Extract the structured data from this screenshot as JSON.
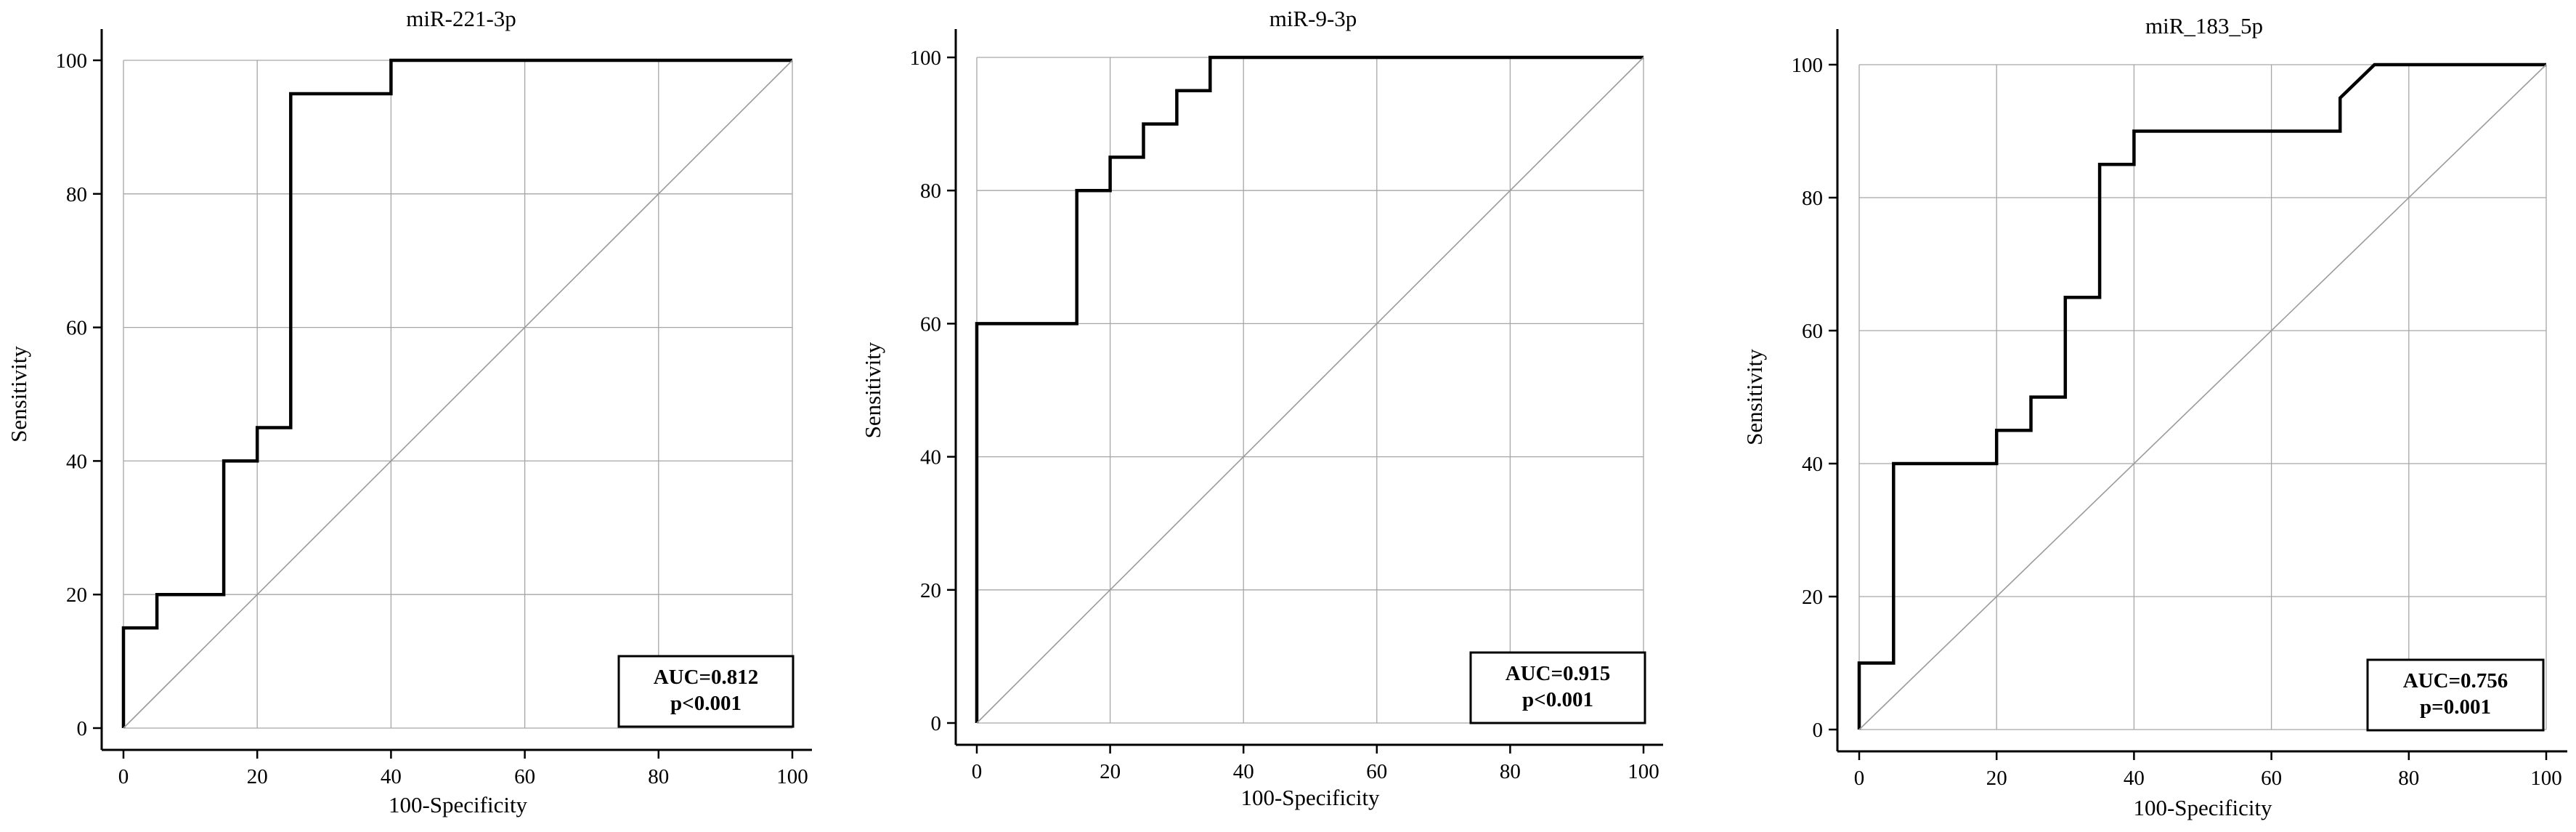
{
  "chart_data": [
    {
      "type": "line",
      "title": "miR-221-3p",
      "xlabel": "100-Specificity",
      "ylabel": "Sensitivity",
      "xlim": [
        0,
        100
      ],
      "ylim": [
        0,
        100
      ],
      "xticks": [
        "0",
        "20",
        "40",
        "60",
        "80",
        "100"
      ],
      "yticks": [
        "0",
        "20",
        "40",
        "60",
        "80",
        "100"
      ],
      "grid": true,
      "legend": "none",
      "series": [
        {
          "points": [
            [
              0,
              0
            ],
            [
              0,
              15
            ],
            [
              5,
              15
            ],
            [
              5,
              20
            ],
            [
              15,
              20
            ],
            [
              15,
              40
            ],
            [
              20,
              40
            ],
            [
              20,
              45
            ],
            [
              25,
              45
            ],
            [
              25,
              95
            ],
            [
              40,
              95
            ],
            [
              40,
              100
            ],
            [
              100,
              100
            ]
          ]
        },
        {
          "points": [
            [
              0,
              0
            ],
            [
              100,
              100
            ]
          ],
          "style": "reference-diagonal"
        }
      ],
      "annotation": {
        "line1": "AUC=0.812",
        "line2": "p<0.001",
        "position": "bottom-right"
      }
    },
    {
      "type": "line",
      "title": "miR-9-3p",
      "xlabel": "100-Specificity",
      "ylabel": "Sensitivity",
      "xlim": [
        0,
        100
      ],
      "ylim": [
        0,
        100
      ],
      "xticks": [
        "0",
        "20",
        "40",
        "60",
        "80",
        "100"
      ],
      "yticks": [
        "0",
        "20",
        "40",
        "60",
        "80",
        "100"
      ],
      "grid": true,
      "legend": "none",
      "series": [
        {
          "points": [
            [
              0,
              0
            ],
            [
              0,
              60
            ],
            [
              15,
              60
            ],
            [
              15,
              80
            ],
            [
              20,
              80
            ],
            [
              20,
              85
            ],
            [
              25,
              85
            ],
            [
              25,
              90
            ],
            [
              30,
              90
            ],
            [
              30,
              95
            ],
            [
              35,
              95
            ],
            [
              35,
              100
            ],
            [
              100,
              100
            ]
          ]
        },
        {
          "points": [
            [
              0,
              0
            ],
            [
              100,
              100
            ]
          ],
          "style": "reference-diagonal"
        }
      ],
      "annotation": {
        "line1": "AUC=0.915",
        "line2": "p<0.001",
        "position": "bottom-right"
      }
    },
    {
      "type": "line",
      "title": "miR_183_5p",
      "xlabel": "100-Specificity",
      "ylabel": "Sensitivity",
      "xlim": [
        0,
        100
      ],
      "ylim": [
        0,
        100
      ],
      "xticks": [
        "0",
        "20",
        "40",
        "60",
        "80",
        "100"
      ],
      "yticks": [
        "0",
        "20",
        "40",
        "60",
        "80",
        "100"
      ],
      "grid": true,
      "legend": "none",
      "series": [
        {
          "points": [
            [
              0,
              0
            ],
            [
              0,
              10
            ],
            [
              5,
              10
            ],
            [
              5,
              40
            ],
            [
              20,
              40
            ],
            [
              20,
              45
            ],
            [
              25,
              45
            ],
            [
              25,
              50
            ],
            [
              30,
              50
            ],
            [
              30,
              65
            ],
            [
              35,
              65
            ],
            [
              35,
              85
            ],
            [
              40,
              85
            ],
            [
              40,
              90
            ],
            [
              70,
              90
            ],
            [
              70,
              95
            ],
            [
              75,
              100
            ],
            [
              100,
              100
            ]
          ]
        },
        {
          "points": [
            [
              0,
              0
            ],
            [
              100,
              100
            ]
          ],
          "style": "reference-diagonal"
        }
      ],
      "annotation": {
        "line1": "AUC=0.756",
        "line2": "p=0.001",
        "position": "bottom-right"
      }
    }
  ]
}
